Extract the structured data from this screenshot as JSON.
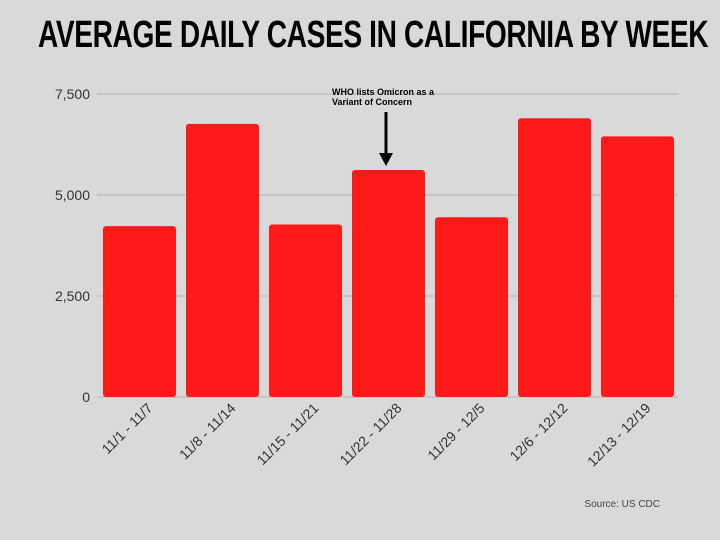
{
  "title": "AVERAGE DAILY CASES IN CALIFORNIA BY WEEK",
  "source": "Source: US CDC",
  "colors": {
    "bar": "#ff1a1a",
    "grid": "#b3b3b3",
    "background": "#d9d9d9"
  },
  "chart_data": {
    "type": "bar",
    "title": "AVERAGE DAILY CASES IN CALIFORNIA BY WEEK",
    "categories": [
      "11/1 - 11/7",
      "11/8 - 11/14",
      "11/15 - 11/21",
      "11/22 - 11/28",
      "11/29 - 12/5",
      "12/6 - 12/12",
      "12/13 - 12/19"
    ],
    "values": [
      4230,
      6760,
      4270,
      5620,
      4450,
      6900,
      6450
    ],
    "ylim": [
      0,
      7500
    ],
    "yticks": [
      0,
      2500,
      5000,
      7500
    ],
    "ytick_labels": [
      "0",
      "2,500",
      "5,000",
      "7,500"
    ],
    "grid": true,
    "annotation": {
      "category": "11/22 - 11/28",
      "lines": [
        "WHO lists Omicron as a",
        "Variant of Concern"
      ]
    }
  }
}
